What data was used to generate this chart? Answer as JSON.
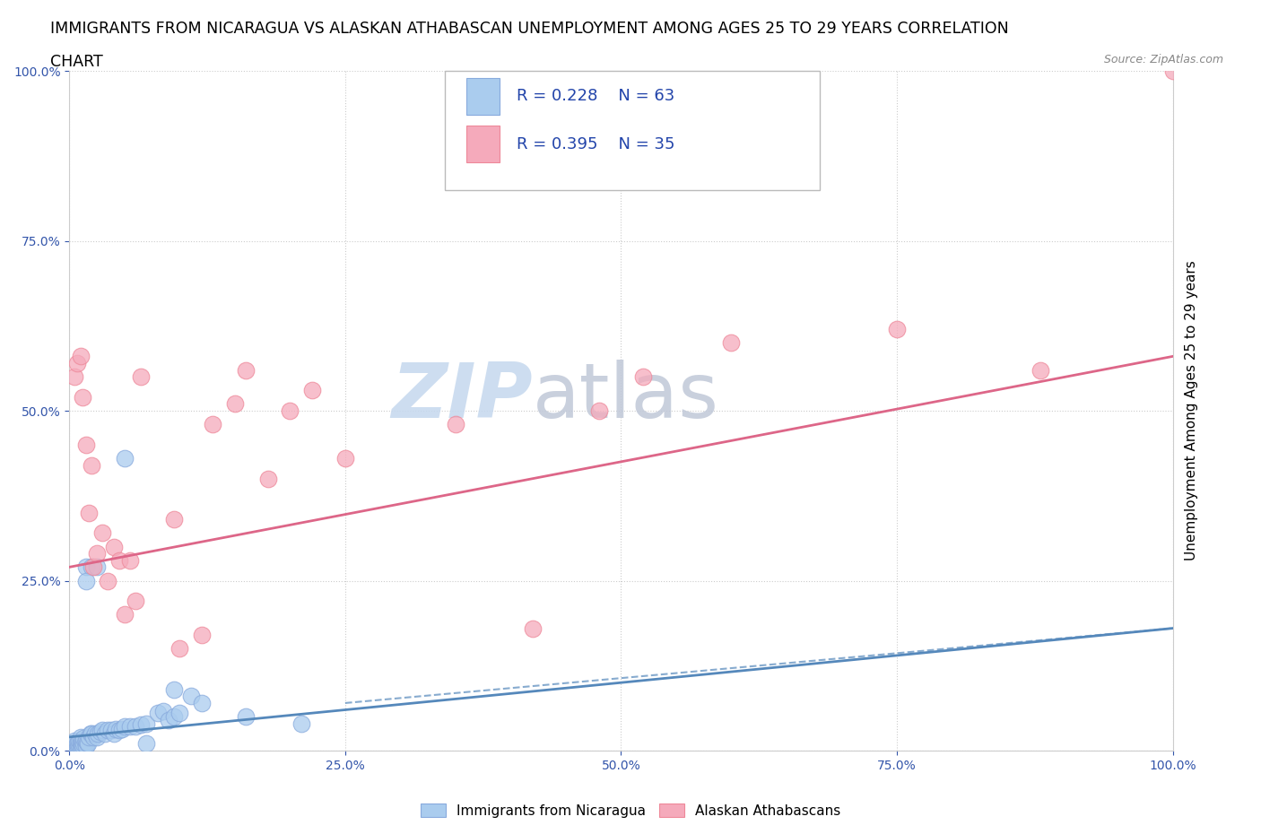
{
  "title_line1": "IMMIGRANTS FROM NICARAGUA VS ALASKAN ATHABASCAN UNEMPLOYMENT AMONG AGES 25 TO 29 YEARS CORRELATION",
  "title_line2": "CHART",
  "source_text": "Source: ZipAtlas.com",
  "ylabel": "Unemployment Among Ages 25 to 29 years",
  "xlim": [
    0,
    1
  ],
  "ylim": [
    0,
    1
  ],
  "xticks": [
    0,
    0.25,
    0.5,
    0.75,
    1.0
  ],
  "yticks": [
    0,
    0.25,
    0.5,
    0.75,
    1.0
  ],
  "xticklabels": [
    "0.0%",
    "25.0%",
    "50.0%",
    "75.0%",
    "100.0%"
  ],
  "yticklabels_right": [
    "0.0%",
    "25.0%",
    "50.0%",
    "75.0%",
    "100.0%"
  ],
  "blue_color": "#aaccee",
  "pink_color": "#f5aabb",
  "blue_edge": "#88aadd",
  "pink_edge": "#ee8899",
  "blue_line_color": "#5588bb",
  "pink_line_color": "#dd6688",
  "legend_R_blue": "R = 0.228",
  "legend_N_blue": "N = 63",
  "legend_R_pink": "R = 0.395",
  "legend_N_pink": "N = 35",
  "watermark_ZIP": "ZIP",
  "watermark_atlas": "atlas",
  "legend_label_blue": "Immigrants from Nicaragua",
  "legend_label_pink": "Alaskan Athabascans",
  "blue_x": [
    0.005,
    0.005,
    0.005,
    0.005,
    0.005,
    0.007,
    0.007,
    0.008,
    0.008,
    0.009,
    0.009,
    0.01,
    0.01,
    0.01,
    0.01,
    0.011,
    0.011,
    0.012,
    0.012,
    0.013,
    0.013,
    0.014,
    0.015,
    0.015,
    0.016,
    0.017,
    0.018,
    0.019,
    0.02,
    0.022,
    0.023,
    0.025,
    0.026,
    0.028,
    0.03,
    0.032,
    0.035,
    0.038,
    0.04,
    0.042,
    0.045,
    0.048,
    0.05,
    0.055,
    0.06,
    0.065,
    0.07,
    0.08,
    0.085,
    0.09,
    0.095,
    0.1,
    0.015,
    0.02,
    0.025,
    0.11,
    0.015,
    0.05,
    0.07,
    0.095,
    0.12,
    0.16,
    0.21
  ],
  "blue_y": [
    0.005,
    0.008,
    0.01,
    0.012,
    0.015,
    0.005,
    0.01,
    0.007,
    0.012,
    0.008,
    0.015,
    0.005,
    0.01,
    0.015,
    0.02,
    0.007,
    0.012,
    0.008,
    0.015,
    0.01,
    0.018,
    0.012,
    0.007,
    0.015,
    0.012,
    0.01,
    0.02,
    0.025,
    0.025,
    0.02,
    0.025,
    0.02,
    0.025,
    0.028,
    0.03,
    0.025,
    0.03,
    0.03,
    0.025,
    0.032,
    0.03,
    0.032,
    0.035,
    0.035,
    0.035,
    0.038,
    0.04,
    0.055,
    0.058,
    0.045,
    0.05,
    0.055,
    0.27,
    0.27,
    0.27,
    0.08,
    0.25,
    0.43,
    0.01,
    0.09,
    0.07,
    0.05,
    0.04
  ],
  "pink_x": [
    0.005,
    0.007,
    0.01,
    0.012,
    0.015,
    0.018,
    0.02,
    0.022,
    0.025,
    0.03,
    0.035,
    0.04,
    0.045,
    0.05,
    0.055,
    0.06,
    0.065,
    0.095,
    0.1,
    0.12,
    0.13,
    0.15,
    0.16,
    0.18,
    0.2,
    0.22,
    0.25,
    0.35,
    0.42,
    0.48,
    0.52,
    0.6,
    0.75,
    0.88,
    1.0
  ],
  "pink_y": [
    0.55,
    0.57,
    0.58,
    0.52,
    0.45,
    0.35,
    0.42,
    0.27,
    0.29,
    0.32,
    0.25,
    0.3,
    0.28,
    0.2,
    0.28,
    0.22,
    0.55,
    0.34,
    0.15,
    0.17,
    0.48,
    0.51,
    0.56,
    0.4,
    0.5,
    0.53,
    0.43,
    0.48,
    0.18,
    0.5,
    0.55,
    0.6,
    0.62,
    0.56,
    1.0
  ],
  "blue_trend_x": [
    0,
    1.0
  ],
  "blue_trend_y": [
    0.02,
    0.18
  ],
  "pink_trend_x": [
    0,
    1.0
  ],
  "pink_trend_y": [
    0.27,
    0.58
  ],
  "background_color": "#ffffff",
  "grid_color": "#cccccc",
  "title_fontsize": 12.5,
  "axis_label_fontsize": 11,
  "tick_fontsize": 10,
  "legend_fontsize": 12,
  "watermark_fontsize_ZIP": 62,
  "watermark_fontsize_atlas": 62,
  "watermark_color_ZIP": "#c5d8ee",
  "watermark_color_atlas": "#c0c8d8",
  "source_fontsize": 9
}
